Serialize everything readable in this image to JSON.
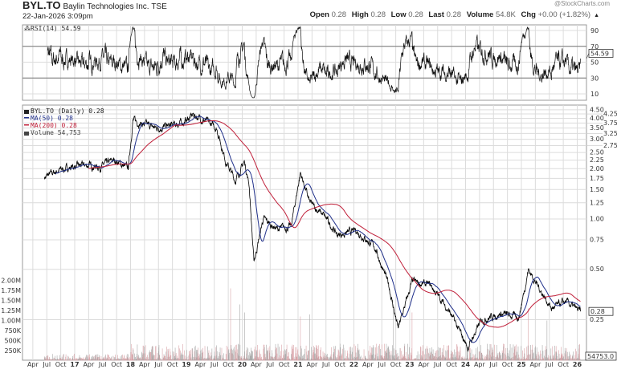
{
  "header": {
    "symbol": "BYL.TO",
    "company": "Baylin Technologies Inc.",
    "exchange": "TSE",
    "timestamp": "22-Jan-2026 3:09pm",
    "watermark": "@StockCharts.com",
    "quote": {
      "open_label": "Open",
      "open": "0.28",
      "high_label": "High",
      "high": "0.28",
      "low_label": "Low",
      "low": "0.28",
      "last_label": "Last",
      "last": "0.28",
      "volume_label": "Volume",
      "volume": "54.8K",
      "chg_label": "Chg",
      "chg": "+0.00 (+1.82%)"
    }
  },
  "colors": {
    "price": "#000000",
    "ma50": "#1f2f8a",
    "ma200": "#c0203a",
    "volume_up": "#d9a3a8",
    "volume_down": "#a8a8a8",
    "grid": "#dcdcdc"
  },
  "chart_data": [
    {
      "type": "line",
      "panel": "rsi",
      "legend": "RSI(14) 54.59",
      "current": 54.59,
      "current_label": "54.59",
      "ylim": [
        0,
        100
      ],
      "yticks": [
        "90",
        "70",
        "50",
        "30",
        "10"
      ],
      "ytick_values": [
        90,
        70,
        50,
        30,
        10
      ],
      "bands": [
        30,
        70
      ]
    },
    {
      "type": "line",
      "panel": "price",
      "scale": "log",
      "legend": [
        "BYL.TO (Daily) 0.28",
        "MA(50) 0.28",
        "MA(200) 0.28",
        "Volume 54,753"
      ],
      "current_label": "0.28",
      "yticks": [
        "4.50",
        "4.25",
        "4.00",
        "3.75",
        "3.50",
        "3.25",
        "3.00",
        "2.75",
        "2.50",
        "2.25",
        "2.00",
        "1.75",
        "1.50",
        "1.25",
        "1.00",
        "0.75",
        "0.50",
        "0.25"
      ],
      "ytick_values": [
        4.5,
        4.25,
        4.0,
        3.75,
        3.5,
        3.25,
        3.0,
        2.75,
        2.5,
        2.25,
        2.0,
        1.75,
        1.5,
        1.25,
        1.0,
        0.75,
        0.5,
        0.25
      ],
      "price_points": [
        [
          "2016-06",
          1.78
        ],
        [
          "2016-09",
          1.95
        ],
        [
          "2016-12",
          2.05
        ],
        [
          "2017-03",
          2.1
        ],
        [
          "2017-06",
          2.05
        ],
        [
          "2017-09",
          2.25
        ],
        [
          "2017-12",
          2.0
        ],
        [
          "2018-01",
          3.9
        ],
        [
          "2018-03",
          3.7
        ],
        [
          "2018-06",
          3.5
        ],
        [
          "2018-09",
          3.6
        ],
        [
          "2018-12",
          3.8
        ],
        [
          "2019-02",
          4.2
        ],
        [
          "2019-05",
          3.8
        ],
        [
          "2019-07",
          3.5
        ],
        [
          "2019-09",
          2.2
        ],
        [
          "2019-11",
          1.7
        ],
        [
          "2020-01",
          2.2
        ],
        [
          "2020-02",
          1.6
        ],
        [
          "2020-03",
          0.55
        ],
        [
          "2020-05",
          1.0
        ],
        [
          "2020-08",
          0.87
        ],
        [
          "2020-11",
          0.9
        ],
        [
          "2021-01",
          1.9
        ],
        [
          "2021-03",
          1.25
        ],
        [
          "2021-06",
          1.05
        ],
        [
          "2021-09",
          0.8
        ],
        [
          "2022-01",
          0.85
        ],
        [
          "2022-05",
          0.68
        ],
        [
          "2022-08",
          0.4
        ],
        [
          "2022-10",
          0.22
        ],
        [
          "2023-01",
          0.42
        ],
        [
          "2023-05",
          0.4
        ],
        [
          "2023-09",
          0.28
        ],
        [
          "2024-01",
          0.17
        ],
        [
          "2024-04",
          0.25
        ],
        [
          "2024-08",
          0.27
        ],
        [
          "2024-12",
          0.26
        ],
        [
          "2025-02",
          0.5
        ],
        [
          "2025-04",
          0.4
        ],
        [
          "2025-07",
          0.29
        ],
        [
          "2025-10",
          0.32
        ],
        [
          "2026-01",
          0.28
        ]
      ]
    },
    {
      "type": "bar",
      "panel": "volume",
      "yticks": [
        "2.00M",
        "1.75M",
        "1.50M",
        "1.25M",
        "1.00M",
        "750K",
        "500K",
        "250K"
      ],
      "ytick_values": [
        2000000,
        1750000,
        1500000,
        1250000,
        1000000,
        750000,
        500000,
        250000
      ],
      "current_label": "54753.0",
      "spikes": [
        [
          "2019-10",
          1800000
        ],
        [
          "2019-12",
          1400000
        ],
        [
          "2020-01",
          1200000
        ],
        [
          "2021-01",
          1100000
        ],
        [
          "2021-03",
          1150000
        ],
        [
          "2022-09",
          1400000
        ],
        [
          "2023-01",
          1200000
        ],
        [
          "2025-02",
          1300000
        ],
        [
          "2025-06",
          1000000
        ]
      ]
    }
  ],
  "xaxis": {
    "ticks": [
      {
        "label": "Apr",
        "t": 2016.25
      },
      {
        "label": "Jul",
        "t": 2016.5
      },
      {
        "label": "Oct",
        "t": 2016.75
      },
      {
        "label": "17",
        "t": 2017,
        "bold": true
      },
      {
        "label": "Apr",
        "t": 2017.25
      },
      {
        "label": "Jul",
        "t": 2017.5
      },
      {
        "label": "Oct",
        "t": 2017.75
      },
      {
        "label": "18",
        "t": 2018,
        "bold": true
      },
      {
        "label": "Apr",
        "t": 2018.25
      },
      {
        "label": "Jul",
        "t": 2018.5
      },
      {
        "label": "Oct",
        "t": 2018.75
      },
      {
        "label": "19",
        "t": 2019,
        "bold": true
      },
      {
        "label": "Apr",
        "t": 2019.25
      },
      {
        "label": "Jul",
        "t": 2019.5
      },
      {
        "label": "Oct",
        "t": 2019.75
      },
      {
        "label": "20",
        "t": 2020,
        "bold": true
      },
      {
        "label": "Apr",
        "t": 2020.25
      },
      {
        "label": "Jul",
        "t": 2020.5
      },
      {
        "label": "Oct",
        "t": 2020.75
      },
      {
        "label": "21",
        "t": 2021,
        "bold": true
      },
      {
        "label": "Apr",
        "t": 2021.25
      },
      {
        "label": "Jul",
        "t": 2021.5
      },
      {
        "label": "Oct",
        "t": 2021.75
      },
      {
        "label": "22",
        "t": 2022,
        "bold": true
      },
      {
        "label": "Apr",
        "t": 2022.25
      },
      {
        "label": "Jul",
        "t": 2022.5
      },
      {
        "label": "Oct",
        "t": 2022.75
      },
      {
        "label": "23",
        "t": 2023,
        "bold": true
      },
      {
        "label": "Apr",
        "t": 2023.25
      },
      {
        "label": "Jul",
        "t": 2023.5
      },
      {
        "label": "Oct",
        "t": 2023.75
      },
      {
        "label": "24",
        "t": 2024,
        "bold": true
      },
      {
        "label": "Apr",
        "t": 2024.25
      },
      {
        "label": "Jul",
        "t": 2024.5
      },
      {
        "label": "Oct",
        "t": 2024.75
      },
      {
        "label": "25",
        "t": 2025,
        "bold": true
      },
      {
        "label": "Apr",
        "t": 2025.25
      },
      {
        "label": "Jul",
        "t": 2025.5
      },
      {
        "label": "Oct",
        "t": 2025.75
      },
      {
        "label": "26",
        "t": 2026,
        "bold": true
      }
    ]
  }
}
